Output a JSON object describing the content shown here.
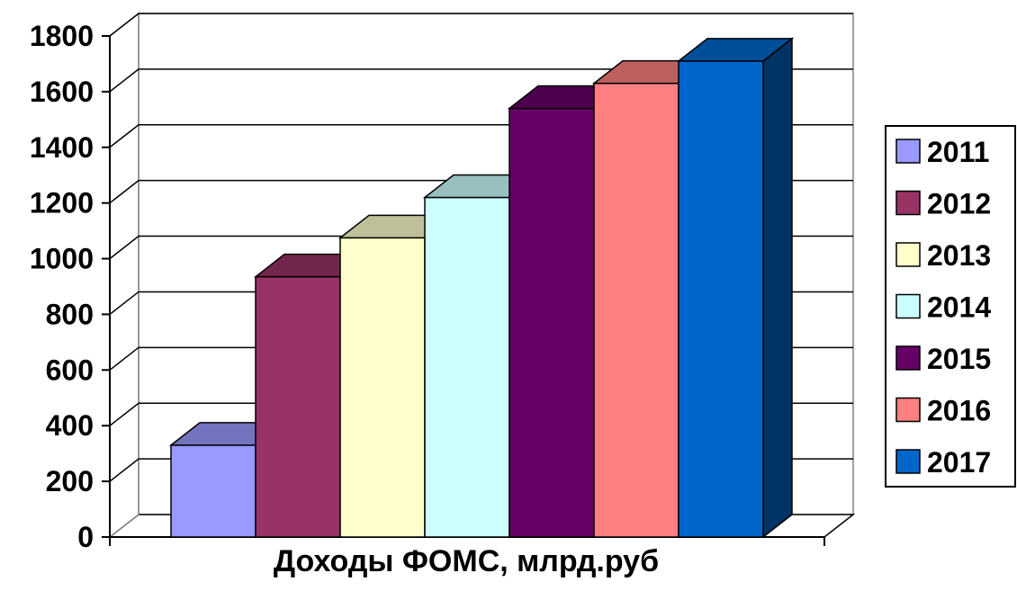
{
  "chart_data": {
    "type": "bar",
    "title": "",
    "xlabel": "Доходы ФОМС, млрд.руб",
    "ylabel": "",
    "ylim": [
      0,
      1800
    ],
    "yticks": [
      0,
      200,
      400,
      600,
      800,
      1000,
      1200,
      1400,
      1600,
      1800
    ],
    "grid": true,
    "legend": "right",
    "categories": [
      "2011",
      "2012",
      "2013",
      "2014",
      "2015",
      "2016",
      "2017"
    ],
    "values": [
      330,
      935,
      1075,
      1220,
      1540,
      1630,
      1710
    ],
    "colors": [
      "#9999ff",
      "#993366",
      "#ffffcc",
      "#ccffff",
      "#660066",
      "#ff8080",
      "#0066cc"
    ],
    "top_colors": [
      "#7373bf",
      "#73264d",
      "#bfbf99",
      "#99bfbf",
      "#4d004d",
      "#bf6060",
      "#004d99"
    ],
    "side_colors": [
      "#4d4d80",
      "#4d1a33",
      "#808066",
      "#668080",
      "#330033",
      "#804040",
      "#003366"
    ]
  }
}
